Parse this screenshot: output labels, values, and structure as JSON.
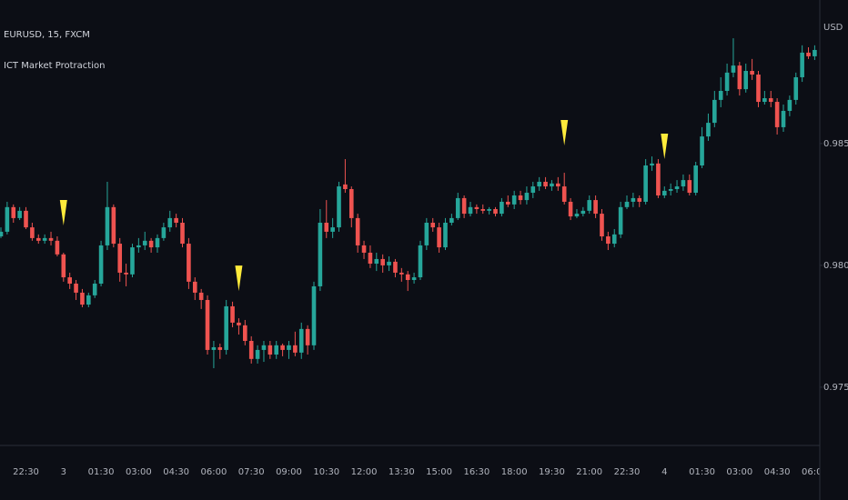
{
  "chart_data": {
    "type": "candlestick",
    "title": "EURUSD, 15, FXCM",
    "subtitle": "ICT Market Protraction",
    "y_axis_label": "USD",
    "categories": [
      null,
      null,
      null,
      null,
      "22:30",
      null,
      null,
      null,
      null,
      null,
      "3",
      null,
      null,
      null,
      null,
      null,
      "01:30",
      null,
      null,
      null,
      null,
      null,
      "03:00",
      null,
      null,
      null,
      null,
      null,
      "04:30",
      null,
      null,
      null,
      null,
      null,
      "06:00",
      null,
      null,
      null,
      null,
      null,
      "07:30",
      null,
      null,
      null,
      null,
      null,
      "09:00",
      null,
      null,
      null,
      null,
      null,
      "10:30",
      null,
      null,
      null,
      null,
      null,
      "12:00",
      null,
      null,
      null,
      null,
      null,
      "13:30",
      null,
      null,
      null,
      null,
      null,
      "15:00",
      null,
      null,
      null,
      null,
      null,
      "16:30",
      null,
      null,
      null,
      null,
      null,
      "18:00",
      null,
      null,
      null,
      null,
      null,
      "19:30",
      null,
      null,
      null,
      null,
      null,
      "21:00",
      null,
      null,
      null,
      null,
      null,
      "22:30",
      null,
      null,
      null,
      null,
      null,
      "4",
      null,
      null,
      null,
      null,
      null,
      "01:30",
      null,
      null,
      null,
      null,
      null,
      "03:00",
      null,
      null,
      null,
      null,
      null,
      "04:30",
      null,
      null,
      null,
      null,
      null,
      "06:00"
    ],
    "open": [
      0.98119,
      0.98138,
      0.98239,
      0.98194,
      0.98224,
      0.98156,
      0.98112,
      0.98101,
      0.98112,
      0.98101,
      0.98045,
      0.97951,
      0.97925,
      0.97888,
      0.97839,
      0.97877,
      0.97925,
      0.98082,
      0.98239,
      0.98089,
      0.9797,
      0.97963,
      0.98074,
      0.98082,
      0.98101,
      0.98074,
      0.98112,
      0.98156,
      0.98194,
      0.98175,
      0.98089,
      0.97933,
      0.97888,
      0.97858,
      0.97653,
      0.97664,
      0.97653,
      0.97832,
      0.97765,
      0.97754,
      0.9769,
      0.97616,
      0.97653,
      0.97672,
      0.97634,
      0.97672,
      0.97653,
      0.97672,
      0.97642,
      0.97739,
      0.97672,
      0.97914,
      0.98175,
      0.98138,
      0.98156,
      0.98332,
      0.98313,
      0.98194,
      0.98082,
      0.98052,
      0.98007,
      0.98026,
      0.98,
      0.98015,
      0.9797,
      0.97963,
      0.9794,
      0.97951,
      0.98082,
      0.98175,
      0.98156,
      0.98074,
      0.98175,
      0.98194,
      0.98276,
      0.98212,
      0.98239,
      0.98231,
      0.98224,
      0.98231,
      0.98212,
      0.98261,
      0.9825,
      0.98287,
      0.98268,
      0.98298,
      0.98324,
      0.98343,
      0.98324,
      0.98336,
      0.98324,
      0.98261,
      0.98201,
      0.98212,
      0.98224,
      0.98268,
      0.98212,
      0.98119,
      0.98089,
      0.98127,
      0.98239,
      0.98261,
      0.98276,
      0.98261,
      0.9841,
      0.98418,
      0.98287,
      0.98306,
      0.98313,
      0.98324,
      0.9835,
      0.98298,
      0.9841,
      0.98529,
      0.98585,
      0.98679,
      0.98716,
      0.98791,
      0.9882,
      0.98723,
      0.98798,
      0.98783,
      0.98671,
      0.98686,
      0.98671,
      0.98567,
      0.98634,
      0.98679,
      0.98772,
      0.98873,
      0.98858
    ],
    "high": [
      0.98156,
      0.98261,
      0.9825,
      0.98239,
      0.98239,
      0.98175,
      0.98127,
      0.98127,
      0.98138,
      0.98119,
      0.98052,
      0.9797,
      0.9794,
      0.97903,
      0.97888,
      0.9794,
      0.98101,
      0.98343,
      0.9825,
      0.98112,
      0.98007,
      0.98089,
      0.98112,
      0.98138,
      0.98112,
      0.98127,
      0.98175,
      0.98224,
      0.98212,
      0.98194,
      0.98112,
      0.97951,
      0.97903,
      0.97877,
      0.9769,
      0.97679,
      0.97858,
      0.97851,
      0.97783,
      0.97776,
      0.97709,
      0.97672,
      0.9769,
      0.9769,
      0.9769,
      0.97679,
      0.9769,
      0.97728,
      0.97765,
      0.97754,
      0.97933,
      0.98231,
      0.98268,
      0.98194,
      0.98343,
      0.98436,
      0.98324,
      0.98212,
      0.98101,
      0.98082,
      0.98052,
      0.98045,
      0.98037,
      0.98026,
      0.97989,
      0.97977,
      0.9797,
      0.98101,
      0.98194,
      0.98194,
      0.98175,
      0.98194,
      0.98212,
      0.98298,
      0.98287,
      0.98261,
      0.9825,
      0.9825,
      0.98239,
      0.98239,
      0.98276,
      0.98287,
      0.98306,
      0.98306,
      0.98324,
      0.98343,
      0.98362,
      0.98362,
      0.9835,
      0.98362,
      0.9838,
      0.98276,
      0.98231,
      0.98239,
      0.98287,
      0.98287,
      0.98231,
      0.98138,
      0.98149,
      0.98261,
      0.98287,
      0.98298,
      0.98287,
      0.98436,
      0.98447,
      0.98436,
      0.98324,
      0.98336,
      0.9835,
      0.98373,
      0.98373,
      0.98425,
      0.98567,
      0.98623,
      0.98716,
      0.98772,
      0.98828,
      0.98932,
      0.98835,
      0.98828,
      0.98847,
      0.98798,
      0.98716,
      0.98716,
      0.98686,
      0.9866,
      0.98697,
      0.98791,
      0.98903,
      0.98895,
      0.98903
    ],
    "low": [
      0.98112,
      0.98127,
      0.98175,
      0.98186,
      0.98149,
      0.98101,
      0.98089,
      0.98089,
      0.98082,
      0.98037,
      0.97933,
      0.97903,
      0.97858,
      0.97828,
      0.97828,
      0.97866,
      0.97914,
      0.98063,
      0.98074,
      0.97933,
      0.97914,
      0.97951,
      0.98052,
      0.98063,
      0.98052,
      0.98052,
      0.98101,
      0.98138,
      0.98156,
      0.98074,
      0.97903,
      0.97858,
      0.97821,
      0.97634,
      0.97578,
      0.97616,
      0.97634,
      0.97746,
      0.97716,
      0.97672,
      0.97597,
      0.97597,
      0.97604,
      0.97616,
      0.97616,
      0.97627,
      0.97616,
      0.97627,
      0.97616,
      0.97634,
      0.97653,
      0.97895,
      0.98112,
      0.98112,
      0.98138,
      0.98298,
      0.98156,
      0.98052,
      0.98026,
      0.97989,
      0.97977,
      0.9797,
      0.97977,
      0.97951,
      0.97933,
      0.97895,
      0.97925,
      0.9794,
      0.98063,
      0.98138,
      0.98052,
      0.98063,
      0.98164,
      0.98186,
      0.98194,
      0.98201,
      0.98212,
      0.98212,
      0.98209,
      0.98201,
      0.98201,
      0.98239,
      0.98231,
      0.9825,
      0.9825,
      0.98276,
      0.98306,
      0.98313,
      0.98306,
      0.98306,
      0.9825,
      0.98186,
      0.98194,
      0.98201,
      0.98212,
      0.98194,
      0.98101,
      0.98063,
      0.98074,
      0.98112,
      0.98231,
      0.98239,
      0.98239,
      0.9825,
      0.98388,
      0.98276,
      0.98276,
      0.98287,
      0.98298,
      0.98306,
      0.98287,
      0.98287,
      0.98399,
      0.98511,
      0.98567,
      0.98649,
      0.98697,
      0.98772,
      0.98697,
      0.98709,
      0.98761,
      0.98649,
      0.9866,
      0.98649,
      0.98537,
      0.98548,
      0.98612,
      0.9866,
      0.98753,
      0.98847,
      0.98843
    ],
    "close": [
      0.98138,
      0.98239,
      0.98194,
      0.98224,
      0.98156,
      0.98112,
      0.98101,
      0.98112,
      0.98101,
      0.98045,
      0.97951,
      0.97925,
      0.97888,
      0.97839,
      0.97877,
      0.97925,
      0.98082,
      0.98239,
      0.98089,
      0.9797,
      0.97963,
      0.98074,
      0.98082,
      0.98101,
      0.98074,
      0.98112,
      0.98156,
      0.98194,
      0.98175,
      0.98089,
      0.97933,
      0.97888,
      0.97858,
      0.97653,
      0.97664,
      0.97653,
      0.97832,
      0.97765,
      0.97754,
      0.9769,
      0.97616,
      0.97653,
      0.97672,
      0.97634,
      0.97672,
      0.97653,
      0.97672,
      0.97642,
      0.97739,
      0.97672,
      0.97914,
      0.98175,
      0.98138,
      0.98156,
      0.98324,
      0.98313,
      0.98194,
      0.98082,
      0.98052,
      0.98007,
      0.98026,
      0.98,
      0.98015,
      0.9797,
      0.97963,
      0.9794,
      0.97951,
      0.98082,
      0.98175,
      0.98156,
      0.98074,
      0.98175,
      0.98194,
      0.98276,
      0.98212,
      0.98239,
      0.98231,
      0.98224,
      0.98231,
      0.98212,
      0.98261,
      0.9825,
      0.98287,
      0.98268,
      0.98298,
      0.98324,
      0.98343,
      0.98324,
      0.98336,
      0.98324,
      0.98261,
      0.98201,
      0.98212,
      0.98224,
      0.98268,
      0.98212,
      0.98119,
      0.98089,
      0.98127,
      0.98239,
      0.98261,
      0.98276,
      0.98261,
      0.9841,
      0.98418,
      0.98287,
      0.98306,
      0.98313,
      0.98324,
      0.9835,
      0.98298,
      0.9841,
      0.98529,
      0.98585,
      0.98679,
      0.98716,
      0.98791,
      0.9882,
      0.98723,
      0.98798,
      0.98783,
      0.98671,
      0.98686,
      0.98671,
      0.98567,
      0.98634,
      0.98679,
      0.98772,
      0.98873,
      0.98858,
      0.98884
    ],
    "up_color": "#26a69a",
    "down_color": "#ef5350",
    "signals": [
      10,
      38,
      90,
      106
    ],
    "signal_color": "#ffeb3b",
    "ylim": [
      0.97261,
      0.99089
    ],
    "yticks": [
      {
        "value": 0.975,
        "label": "0.97500"
      },
      {
        "value": 0.98,
        "label": "0.98000"
      },
      {
        "value": 0.985,
        "label": "0.98500"
      }
    ]
  }
}
